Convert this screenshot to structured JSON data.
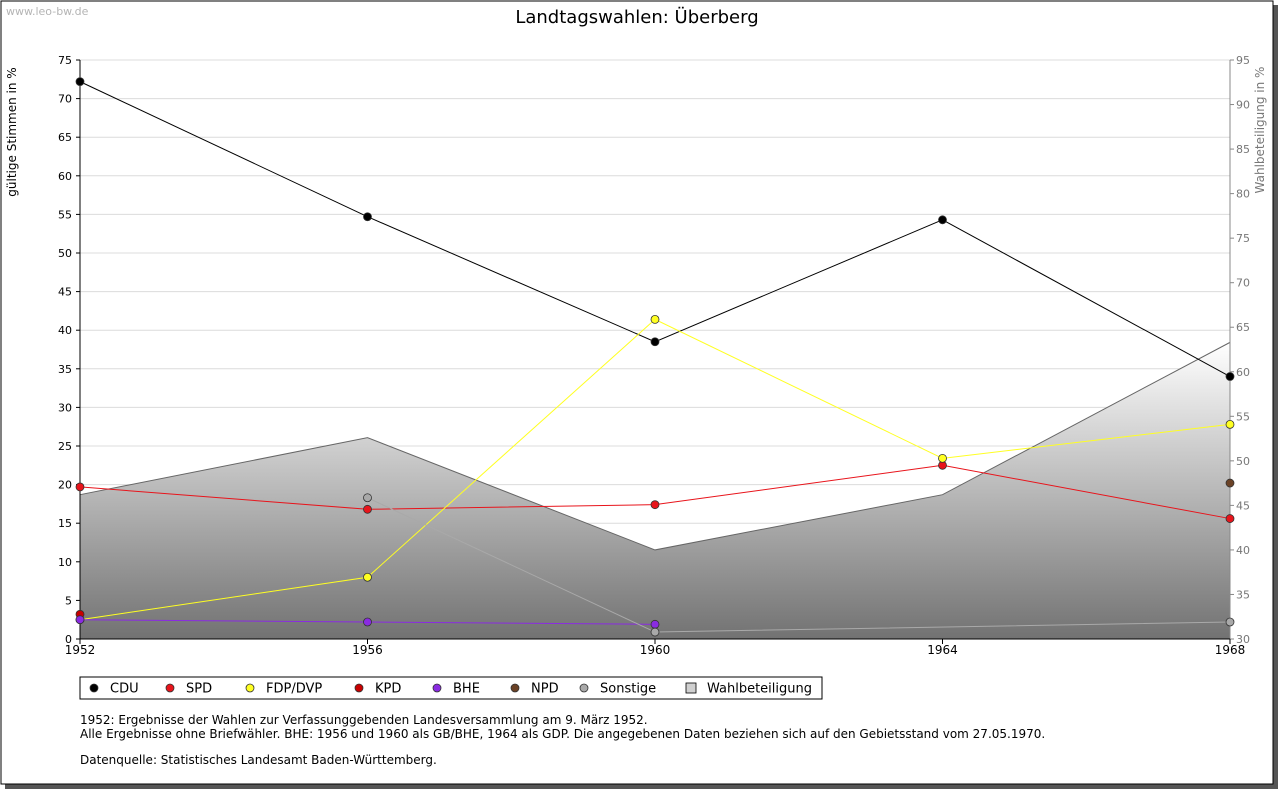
{
  "watermark": "www.leo-bw.de",
  "chart_data": {
    "type": "line",
    "title": "Landtagswahlen: Überberg",
    "ylabel_left": "gültige Stimmen in %",
    "ylabel_right": "Wahlbeteiligung in %",
    "x": [
      1952,
      1956,
      1960,
      1964,
      1968
    ],
    "x_ticks": [
      "1952",
      "1956",
      "1960",
      "1964",
      "1968"
    ],
    "ylim_left": [
      0,
      75
    ],
    "yticks_left": [
      "0",
      "5",
      "10",
      "15",
      "20",
      "25",
      "30",
      "35",
      "40",
      "45",
      "50",
      "55",
      "60",
      "65",
      "70",
      "75"
    ],
    "ylim_right": [
      30,
      95
    ],
    "yticks_right": [
      "30",
      "35",
      "40",
      "45",
      "50",
      "55",
      "60",
      "65",
      "70",
      "75",
      "80",
      "85",
      "90",
      "95"
    ],
    "grid": true,
    "legend_position": "bottom",
    "series": [
      {
        "name": "CDU",
        "color": "#000000",
        "values": [
          72.2,
          54.7,
          38.5,
          54.3,
          34.0
        ]
      },
      {
        "name": "SPD",
        "color": "#e8141b",
        "values": [
          19.7,
          16.8,
          17.4,
          22.5,
          15.6
        ]
      },
      {
        "name": "FDP/DVP",
        "color": "#ffff22",
        "values": [
          2.5,
          8.0,
          41.4,
          23.4,
          27.8
        ]
      },
      {
        "name": "KPD",
        "color": "#c80000",
        "values": [
          3.2,
          null,
          null,
          null,
          null
        ]
      },
      {
        "name": "BHE",
        "color": "#8a2be2",
        "values": [
          2.5,
          2.2,
          1.9,
          null,
          null
        ]
      },
      {
        "name": "NPD",
        "color": "#6b4226",
        "values": [
          null,
          null,
          null,
          null,
          20.2
        ]
      },
      {
        "name": "Sonstige",
        "color": "#a9a9a9",
        "values": [
          null,
          18.3,
          0.9,
          null,
          2.2
        ]
      }
    ],
    "area": {
      "name": "Wahlbeteiligung",
      "axis": "right",
      "values": [
        46.2,
        52.6,
        40.0,
        46.2,
        63.3
      ]
    },
    "legend": [
      "CDU",
      "SPD",
      "FDP/DVP",
      "KPD",
      "BHE",
      "NPD",
      "Sonstige",
      "Wahlbeteiligung"
    ]
  },
  "notes": {
    "line1": "1952: Ergebnisse der Wahlen zur Verfassunggebenden Landesversammlung am 9. März 1952.",
    "line2": "Alle Ergebnisse ohne Briefwähler. BHE: 1956 und 1960 als GB/BHE, 1964 als GDP. Die angegebenen Daten beziehen sich auf den Gebietsstand vom 27.05.1970.",
    "source": "Datenquelle: Statistisches Landesamt Baden-Württemberg."
  }
}
